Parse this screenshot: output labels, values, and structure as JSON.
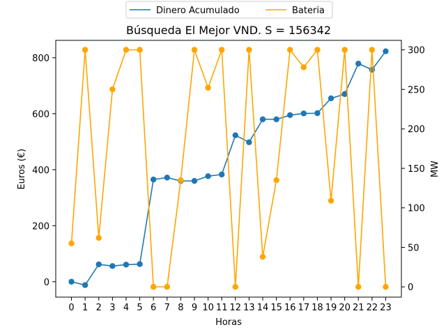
{
  "chart_data": {
    "type": "line",
    "title": "Búsqueda El Mejor VND. S = 156342",
    "xlabel": "Horas",
    "ylabel": "Euros (€)",
    "y2label": "MW",
    "x": [
      0,
      1,
      2,
      3,
      4,
      5,
      6,
      7,
      8,
      9,
      10,
      11,
      12,
      13,
      14,
      15,
      16,
      17,
      18,
      19,
      20,
      21,
      22,
      23
    ],
    "xticks": [
      "0",
      "1",
      "2",
      "3",
      "4",
      "5",
      "6",
      "7",
      "8",
      "9",
      "10",
      "11",
      "12",
      "13",
      "14",
      "15",
      "16",
      "17",
      "18",
      "19",
      "20",
      "21",
      "22",
      "23"
    ],
    "xlim": [
      -1.15,
      24.15
    ],
    "ylim": [
      -55,
      862
    ],
    "yticks": [
      "0",
      "200",
      "400",
      "600",
      "800"
    ],
    "y2lim": [
      -13,
      312
    ],
    "y2ticks": [
      "0",
      "50",
      "100",
      "150",
      "200",
      "250",
      "300"
    ],
    "legend_position": "top-center",
    "grid": false,
    "series": [
      {
        "name": "Dinero Acumulado",
        "axis": "left",
        "color": "#1f77b4",
        "values": [
          0,
          -12,
          62,
          56,
          61,
          63,
          365,
          372,
          360,
          360,
          377,
          383,
          523,
          498,
          580,
          580,
          595,
          601,
          602,
          655,
          670,
          779,
          757,
          823
        ]
      },
      {
        "name": "Bateria",
        "axis": "right",
        "color": "#ffa500",
        "values": [
          55,
          300,
          62,
          250,
          300,
          300,
          0,
          0,
          135,
          300,
          252,
          300,
          0,
          300,
          38,
          135,
          300,
          278,
          300,
          109,
          300,
          0,
          300,
          0
        ]
      }
    ]
  }
}
